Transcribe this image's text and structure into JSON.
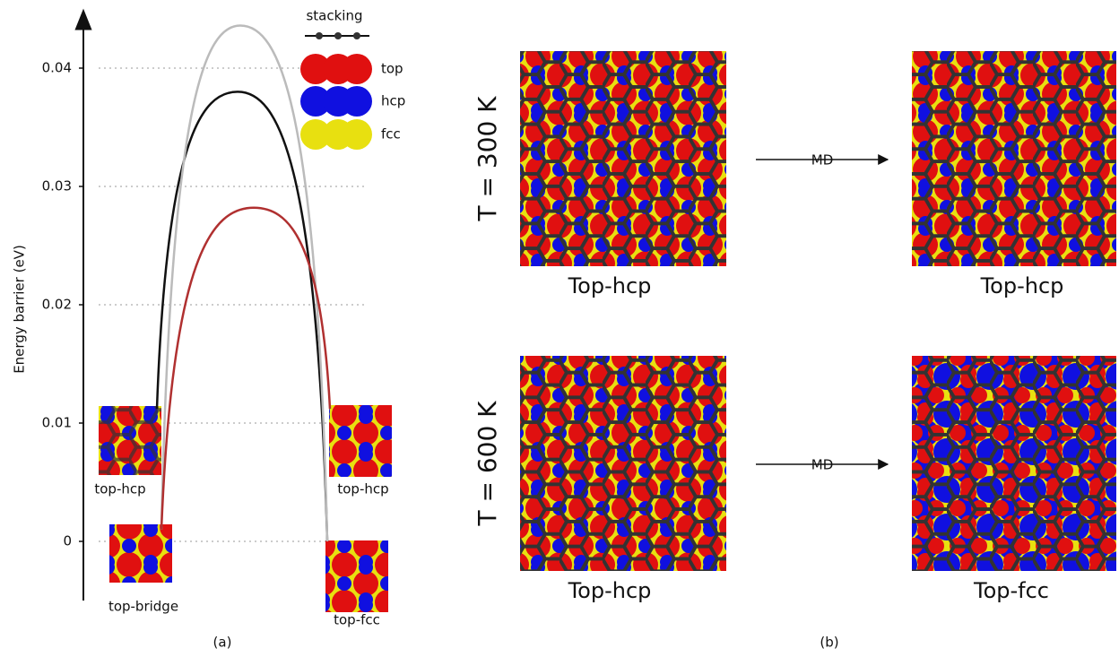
{
  "chart_data": {
    "type": "line",
    "ylabel": "Energy barrier (eV)",
    "ylim": [
      -0.005,
      0.045
    ],
    "yticks": [
      0,
      0.01,
      0.02,
      0.03,
      0.04
    ],
    "grid": true,
    "series": [
      {
        "color": "#111111",
        "values": [
          0.0112,
          0.038,
          0
        ]
      },
      {
        "color": "#bbbbbb",
        "values": [
          0.001,
          0.0436,
          0
        ]
      },
      {
        "color": "#b03030",
        "values": [
          0.001,
          0.0282,
          0.0112
        ]
      }
    ],
    "legend": {
      "title": "stacking",
      "items": [
        "top",
        "hcp",
        "fcc"
      ]
    },
    "insets": [
      "top-hcp",
      "top-bridge",
      "top-hcp",
      "top-fcc"
    ],
    "panel_label": "(a)"
  },
  "panel_b": {
    "label": "(b)",
    "arrow": "MD",
    "rows": [
      {
        "temperature": "T = 300 K",
        "before": "Top-hcp",
        "after": "Top-hcp"
      },
      {
        "temperature": "T = 600 K",
        "before": "Top-hcp",
        "after": "Top-fcc"
      }
    ]
  }
}
